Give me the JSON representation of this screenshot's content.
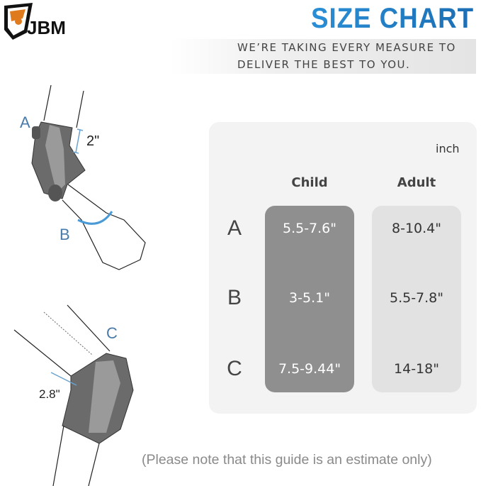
{
  "brand": {
    "logo_text": "JBM"
  },
  "header": {
    "title": "SIZE CHART",
    "tagline_line1": "WE’RE TAKING EVERY MEASURE TO",
    "tagline_line2": "DELIVER THE BEST TO YOU."
  },
  "illustration": {
    "elbow_labels": {
      "a": "A",
      "b": "B",
      "pad_height": "2\""
    },
    "knee_labels": {
      "c": "C",
      "pad_height": "2.8\""
    }
  },
  "size_table": {
    "unit": "inch",
    "columns": [
      "Child",
      "Adult"
    ],
    "rows": [
      {
        "label": "A",
        "child": "5.5-7.6\"",
        "adult": "8-10.4\""
      },
      {
        "label": "B",
        "child": "3-5.1\"",
        "adult": "5.5-7.8\""
      },
      {
        "label": "C",
        "child": "7.5-9.44\"",
        "adult": "14-18\""
      }
    ],
    "colors": {
      "child_column": "#8f8f8f",
      "adult_column": "#e2e2e2",
      "panel": "#f3f3f3"
    }
  },
  "footer": {
    "note": "(Please note that this guide is an estimate only)"
  },
  "colors": {
    "title_blue": "#2a8fd6",
    "measure_blue": "#4a9ad8"
  }
}
